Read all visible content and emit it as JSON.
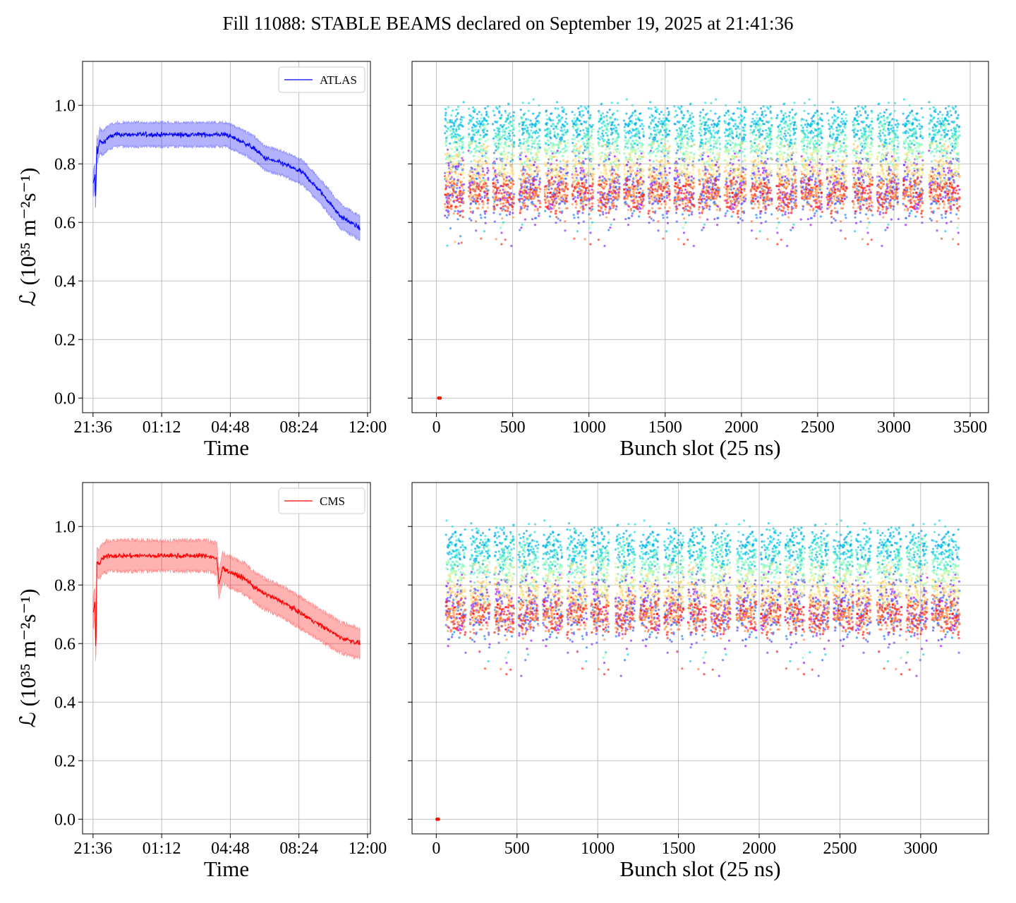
{
  "figure": {
    "title": "Fill 11088: STABLE BEAMS declared on September 19, 2025 at 21:41:36"
  },
  "chart_data": [
    {
      "id": "atlas-time",
      "type": "line",
      "experiment": "ATLAS",
      "legend": [
        "ATLAS"
      ],
      "legend_placement": "top-right",
      "xlabel": "Time",
      "ylabel": "ℒ (10³⁵ m⁻²s⁻¹)",
      "xtick_labels": [
        "21:36",
        "01:12",
        "04:48",
        "08:24",
        "12:00"
      ],
      "xlim_hours": [
        -0.55,
        14.55
      ],
      "ylim": [
        -0.05,
        1.15
      ],
      "yticks": [
        "0.0",
        "0.2",
        "0.4",
        "0.6",
        "0.8",
        "1.0"
      ],
      "grid": true,
      "color": "#0000ff",
      "band_color": "#0000ff",
      "series": [
        {
          "x_hours_from_2136": [
            0,
            0.1,
            0.13,
            0.2,
            0.24,
            0.3,
            0.35,
            0.5,
            0.8,
            1.2,
            2,
            3,
            4,
            5,
            6,
            7,
            8,
            8.5,
            9,
            10,
            11,
            12,
            13,
            14
          ],
          "y": [
            0.73,
            0.76,
            0.66,
            0.86,
            0.84,
            0.86,
            0.88,
            0.87,
            0.89,
            0.9,
            0.9,
            0.9,
            0.9,
            0.9,
            0.9,
            0.9,
            0.87,
            0.85,
            0.82,
            0.8,
            0.77,
            0.7,
            0.62,
            0.58
          ],
          "band_halfwidth": 0.035
        }
      ]
    },
    {
      "id": "atlas-bunch",
      "type": "scatter",
      "xlabel": "Bunch slot (25 ns)",
      "xtick_labels": [
        "0",
        "500",
        "1000",
        "1500",
        "2000",
        "2500",
        "3000",
        "3500"
      ],
      "xlim": [
        -160,
        3620
      ],
      "ylim": [
        -0.05,
        1.15
      ],
      "grid": true,
      "x_range": [
        50,
        3430
      ],
      "trains": [
        [
          55,
          180
        ],
        [
          210,
          340
        ],
        [
          370,
          510
        ],
        [
          540,
          680
        ],
        [
          710,
          860
        ],
        [
          890,
          1030
        ],
        [
          1060,
          1200
        ],
        [
          1230,
          1360
        ],
        [
          1390,
          1530
        ],
        [
          1560,
          1690
        ],
        [
          1720,
          1860
        ],
        [
          1890,
          2030
        ],
        [
          2060,
          2200
        ],
        [
          2230,
          2360
        ],
        [
          2390,
          2530
        ],
        [
          2560,
          2690
        ],
        [
          2730,
          2860
        ],
        [
          2890,
          3030
        ],
        [
          3060,
          3190
        ],
        [
          3230,
          3430
        ]
      ],
      "y_band_typical": [
        0.6,
        1.05
      ],
      "y_min_outliers": 0.5,
      "y_max": 1.07,
      "color_scale": "rainbow",
      "empty_point": {
        "x": 15,
        "y": 0.0
      }
    },
    {
      "id": "cms-time",
      "type": "line",
      "experiment": "CMS",
      "legend": [
        "CMS"
      ],
      "legend_placement": "top-right",
      "xlabel": "Time",
      "ylabel": "ℒ (10³⁵ m⁻²s⁻¹)",
      "xtick_labels": [
        "21:36",
        "01:12",
        "04:48",
        "08:24",
        "12:00"
      ],
      "xlim_hours": [
        -0.55,
        14.55
      ],
      "ylim": [
        -0.05,
        1.15
      ],
      "yticks": [
        "0.0",
        "0.2",
        "0.4",
        "0.6",
        "0.8",
        "1.0"
      ],
      "grid": true,
      "color": "#ff0000",
      "band_color": "#ff0000",
      "series": [
        {
          "x_hours_from_2136": [
            0,
            0.1,
            0.15,
            0.2,
            0.3,
            0.5,
            0.8,
            1.5,
            2,
            3,
            4,
            5,
            6,
            6.5,
            6.6,
            6.8,
            7,
            8,
            8.5,
            9,
            10,
            11,
            12,
            13,
            14
          ],
          "y": [
            0.7,
            0.74,
            0.56,
            0.88,
            0.87,
            0.89,
            0.9,
            0.9,
            0.9,
            0.9,
            0.9,
            0.9,
            0.9,
            0.89,
            0.8,
            0.86,
            0.85,
            0.82,
            0.79,
            0.77,
            0.74,
            0.7,
            0.66,
            0.62,
            0.6
          ],
          "band_halfwidth": 0.045
        }
      ]
    },
    {
      "id": "cms-bunch",
      "type": "scatter",
      "xlabel": "Bunch slot (25 ns)",
      "xtick_labels": [
        "0",
        "500",
        "1000",
        "1500",
        "2000",
        "2500",
        "3000"
      ],
      "xlim": [
        -150,
        3420
      ],
      "ylim": [
        -0.05,
        1.15
      ],
      "grid": true,
      "x_range": [
        50,
        3240
      ],
      "trains": [
        [
          60,
          180
        ],
        [
          210,
          330
        ],
        [
          360,
          480
        ],
        [
          510,
          630
        ],
        [
          660,
          780
        ],
        [
          810,
          930
        ],
        [
          960,
          1070
        ],
        [
          1110,
          1230
        ],
        [
          1260,
          1380
        ],
        [
          1410,
          1530
        ],
        [
          1560,
          1670
        ],
        [
          1700,
          1820
        ],
        [
          1860,
          1980
        ],
        [
          2010,
          2130
        ],
        [
          2160,
          2280
        ],
        [
          2310,
          2430
        ],
        [
          2460,
          2580
        ],
        [
          2600,
          2690
        ],
        [
          2730,
          2880
        ],
        [
          2910,
          3040
        ],
        [
          3070,
          3240
        ]
      ],
      "y_band_typical": [
        0.6,
        1.05
      ],
      "y_min_outliers": 0.47,
      "y_max": 1.09,
      "color_scale": "rainbow",
      "empty_point": {
        "x": 5,
        "y": 0.0
      }
    }
  ]
}
